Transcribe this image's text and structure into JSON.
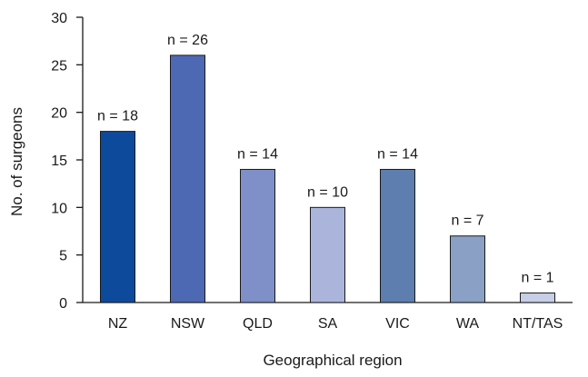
{
  "chart_data": {
    "type": "bar",
    "title": "",
    "xlabel": "Geographical region",
    "ylabel": "No. of surgeons",
    "categories": [
      "NZ",
      "NSW",
      "QLD",
      "SA",
      "VIC",
      "WA",
      "NT/TAS"
    ],
    "values": [
      18,
      26,
      14,
      10,
      14,
      7,
      1
    ],
    "data_labels": [
      "n = 18",
      "n = 26",
      "n = 14",
      "n = 10",
      "n = 14",
      "n = 7",
      "n = 1"
    ],
    "ylim": [
      0,
      30
    ],
    "yticks": [
      "0",
      "5",
      "10",
      "15",
      "20",
      "25",
      "30"
    ],
    "grid": false,
    "legend": "none",
    "colors": [
      "#0e4a9c",
      "#4e69b4",
      "#7f8fc8",
      "#abb5dc",
      "#5d7eaf",
      "#8aa0c4",
      "#c7cee6"
    ],
    "edge_color": "#1a1a1a"
  }
}
